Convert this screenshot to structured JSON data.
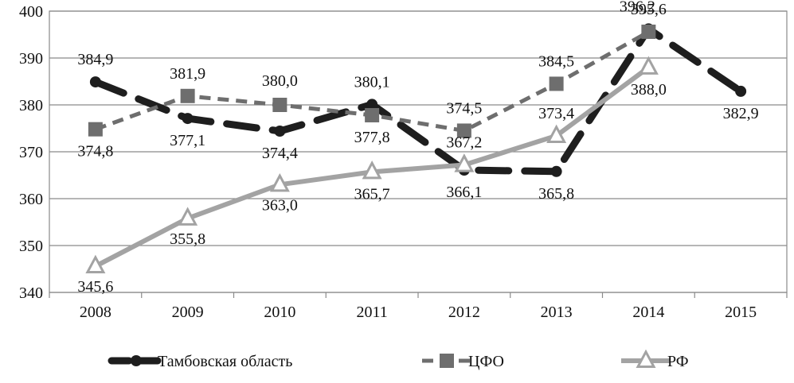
{
  "chart_data": {
    "type": "line",
    "title": "",
    "xlabel": "",
    "ylabel": "",
    "categories": [
      "2008",
      "2009",
      "2010",
      "2011",
      "2012",
      "2013",
      "2014",
      "2015"
    ],
    "ylim": [
      340,
      400
    ],
    "yticks": [
      340,
      350,
      360,
      370,
      380,
      390,
      400
    ],
    "grid": true,
    "legend_position": "bottom",
    "series": [
      {
        "name": "Тамбовская область",
        "values": [
          384.9,
          377.1,
          374.4,
          380.1,
          366.1,
          365.8,
          396.2,
          382.9
        ],
        "labels": [
          "384,9",
          "377,1",
          "374,4",
          "380,1",
          "366,1",
          "365,8",
          "396,2",
          "382,9"
        ],
        "color": "#1e1e1e",
        "dash": "long-dash",
        "marker": "circle"
      },
      {
        "name": "ЦФО",
        "values": [
          374.8,
          381.9,
          380.0,
          377.8,
          374.5,
          384.5,
          395.6,
          null
        ],
        "labels": [
          "374,8",
          "381,9",
          "380,0",
          "377,8",
          "374,5",
          "384,5",
          "395,6",
          ""
        ],
        "color": "#6e6e6e",
        "dash": "short-dash",
        "marker": "square"
      },
      {
        "name": "РФ",
        "values": [
          345.6,
          355.8,
          363.0,
          365.7,
          367.2,
          373.4,
          388.0,
          null
        ],
        "labels": [
          "345,6",
          "355,8",
          "363,0",
          "365,7",
          "367,2",
          "373,4",
          "388,0",
          ""
        ],
        "color": "#a3a3a3",
        "dash": "solid",
        "marker": "triangle"
      }
    ]
  }
}
